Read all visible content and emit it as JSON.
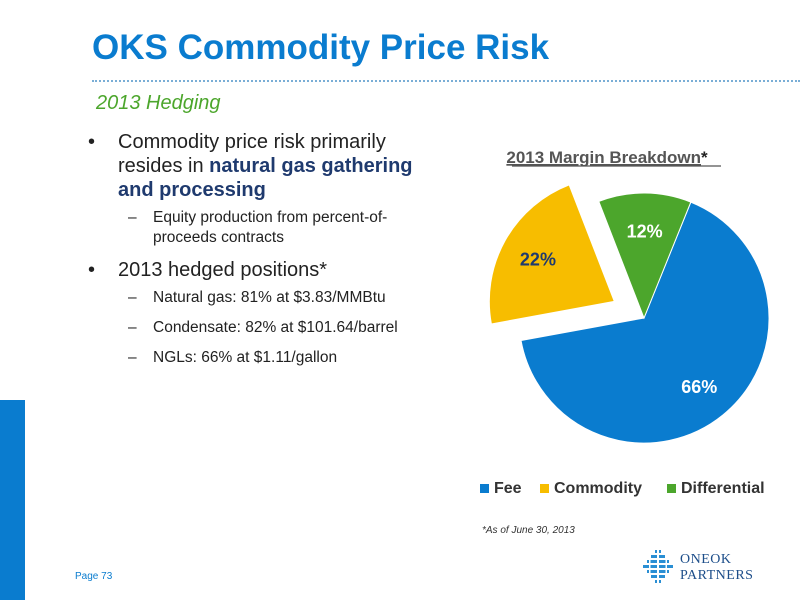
{
  "title": "OKS Commodity Price Risk",
  "subtitle": "2013 Hedging",
  "bullets": {
    "b1_pre": "Commodity price risk primarily resides in ",
    "b1_strong": "natural gas gathering and processing",
    "b1_sub": "Equity production from percent-of-proceeds contracts",
    "b2": "2013 hedged positions*",
    "b2_subs": [
      "Natural gas: 81% at $3.83/MMBtu",
      "Condensate: 82% at $101.64/barrel",
      "NGLs: 66% at $1.11/gallon"
    ]
  },
  "chart_data": {
    "type": "pie",
    "title": "2013 Margin Breakdown",
    "title_suffix": "*",
    "categories": [
      "Fee",
      "Commodity",
      "Differential"
    ],
    "values": [
      66,
      22,
      12
    ],
    "labels": [
      "66%",
      "22%",
      "12%"
    ],
    "colors": [
      "#0a7ccf",
      "#f7bd00",
      "#4ca62c"
    ],
    "exploded": "Commodity",
    "legend_position": "bottom"
  },
  "footnote": "*As of June 30, 2013",
  "page_number": "Page 73",
  "logo": {
    "line1": "ONEOK",
    "line2": "PARTNERS"
  }
}
